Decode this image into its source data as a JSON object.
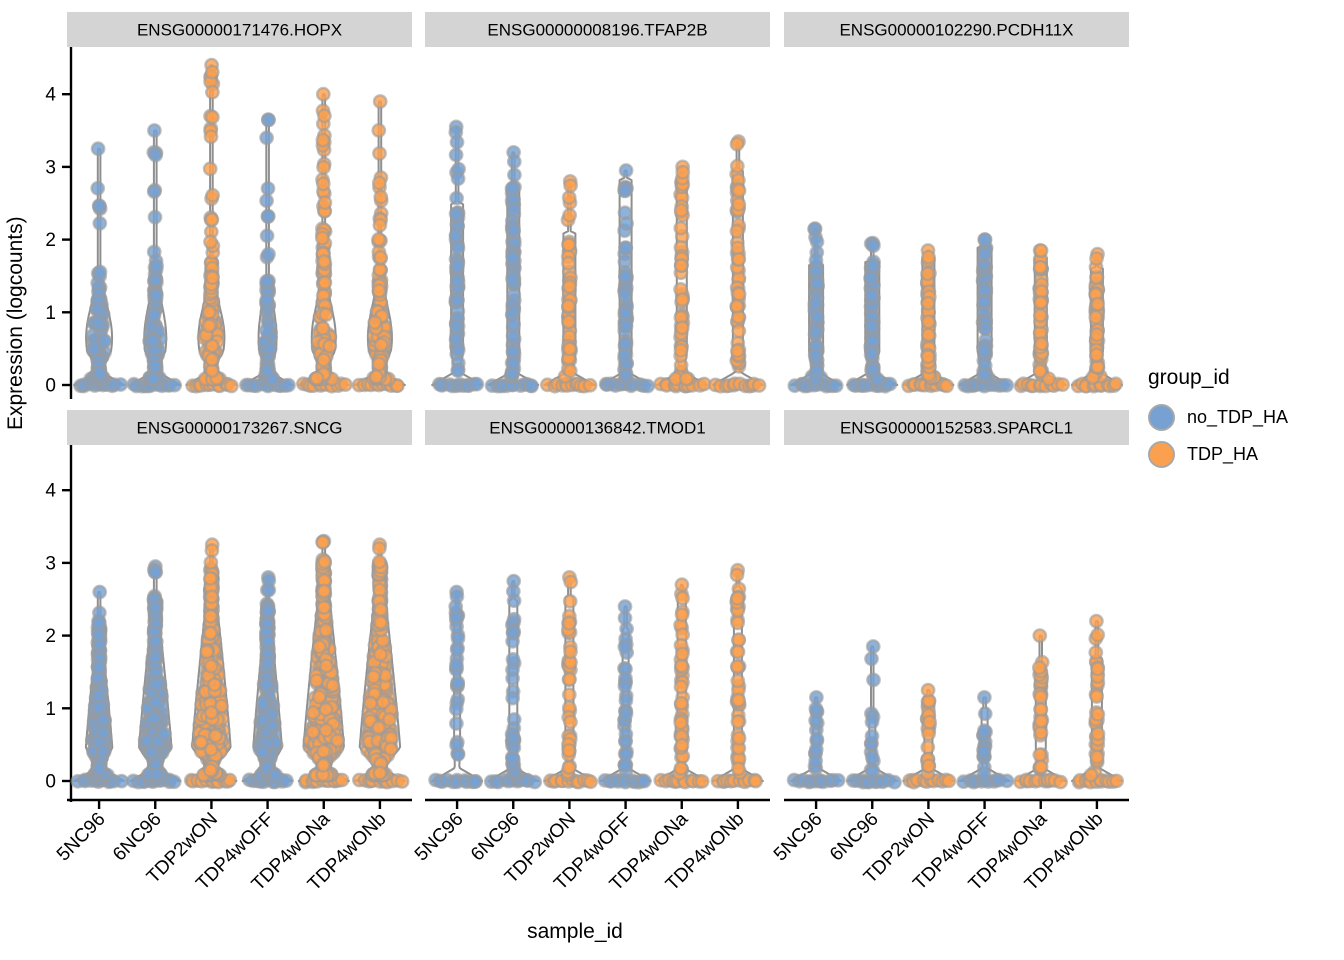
{
  "chart_data": {
    "type": "violin",
    "ylabel": "Expression (logcounts)",
    "xlabel": "sample_id",
    "y_ticks": [
      0,
      1,
      2,
      3,
      4
    ],
    "ylim": [
      0,
      4.6
    ],
    "grid": "off",
    "samples": [
      "5NC96",
      "6NC96",
      "TDP2wON",
      "TDP4wOFF",
      "TDP4wONa",
      "TDP4wONb"
    ],
    "sample_groups": [
      "no_TDP_HA",
      "no_TDP_HA",
      "TDP_HA",
      "no_TDP_HA",
      "TDP_HA",
      "TDP_HA"
    ],
    "legend": {
      "title": "group_id",
      "position": "right",
      "items": [
        {
          "label": "no_TDP_HA",
          "color": "#76A1D2"
        },
        {
          "label": "TDP_HA",
          "color": "#FBA04E"
        }
      ]
    },
    "colors": {
      "point_stroke": "#9b9b9b",
      "violin_fill": "#FBFBFB",
      "violin_stroke": "#8f8f8f",
      "strip_bg": "#D4D4D4",
      "axis": "#000000"
    },
    "facets": [
      {
        "label": "ENSG00000171476.HOPX",
        "violins": [
          {
            "sample": "5NC96",
            "group": "no_TDP_HA",
            "max": 3.25,
            "body_top": 1.35,
            "body_hw": 13,
            "shape": "bulge",
            "n_body": 95,
            "n_stem": 10
          },
          {
            "sample": "6NC96",
            "group": "no_TDP_HA",
            "max": 3.5,
            "body_top": 1.55,
            "body_hw": 11,
            "shape": "bulge",
            "n_body": 85,
            "n_stem": 12
          },
          {
            "sample": "TDP2wON",
            "group": "TDP_HA",
            "max": 4.4,
            "body_top": 1.7,
            "body_hw": 13,
            "shape": "bulge",
            "n_body": 115,
            "n_stem": 22
          },
          {
            "sample": "TDP4wOFF",
            "group": "no_TDP_HA",
            "max": 3.65,
            "body_top": 1.5,
            "body_hw": 9,
            "shape": "bulge",
            "n_body": 70,
            "n_stem": 10
          },
          {
            "sample": "TDP4wONa",
            "group": "TDP_HA",
            "max": 4.0,
            "body_top": 1.95,
            "body_hw": 12,
            "shape": "bulge",
            "n_body": 115,
            "n_stem": 24
          },
          {
            "sample": "TDP4wONb",
            "group": "TDP_HA",
            "max": 3.9,
            "body_top": 1.6,
            "body_hw": 12,
            "shape": "bulge",
            "n_body": 105,
            "n_stem": 20
          }
        ]
      },
      {
        "label": "ENSG00000008196.TFAP2B",
        "violins": [
          {
            "sample": "5NC96",
            "group": "no_TDP_HA",
            "max": 3.55,
            "body_top": 2.5,
            "body_hw": 6,
            "shape": "column",
            "n_body": 60,
            "n_stem": 8
          },
          {
            "sample": "6NC96",
            "group": "no_TDP_HA",
            "max": 3.2,
            "body_top": 2.7,
            "body_hw": 6,
            "shape": "column",
            "n_body": 62,
            "n_stem": 6
          },
          {
            "sample": "TDP2wON",
            "group": "TDP_HA",
            "max": 2.8,
            "body_top": 2.1,
            "body_hw": 6,
            "shape": "column",
            "n_body": 48,
            "n_stem": 6
          },
          {
            "sample": "TDP4wOFF",
            "group": "no_TDP_HA",
            "max": 2.95,
            "body_top": 2.85,
            "body_hw": 6,
            "shape": "column",
            "n_body": 55,
            "n_stem": 1
          },
          {
            "sample": "TDP4wONa",
            "group": "TDP_HA",
            "max": 3.0,
            "body_top": 2.85,
            "body_hw": 5,
            "shape": "column",
            "n_body": 48,
            "n_stem": 2
          },
          {
            "sample": "TDP4wONb",
            "group": "TDP_HA",
            "max": 3.35,
            "body_top": 2.95,
            "body_hw": 5,
            "shape": "column",
            "n_body": 52,
            "n_stem": 3
          }
        ]
      },
      {
        "label": "ENSG00000102290.PCDH11X",
        "violins": [
          {
            "sample": "5NC96",
            "group": "no_TDP_HA",
            "max": 2.15,
            "body_top": 1.65,
            "body_hw": 7,
            "shape": "column",
            "n_body": 62,
            "n_stem": 6
          },
          {
            "sample": "6NC96",
            "group": "no_TDP_HA",
            "max": 1.95,
            "body_top": 1.7,
            "body_hw": 7,
            "shape": "column",
            "n_body": 60,
            "n_stem": 3
          },
          {
            "sample": "TDP2wON",
            "group": "TDP_HA",
            "max": 1.85,
            "body_top": 1.75,
            "body_hw": 6,
            "shape": "column",
            "n_body": 55,
            "n_stem": 2
          },
          {
            "sample": "TDP4wOFF",
            "group": "no_TDP_HA",
            "max": 2.0,
            "body_top": 1.9,
            "body_hw": 7,
            "shape": "column",
            "n_body": 60,
            "n_stem": 2
          },
          {
            "sample": "TDP4wONa",
            "group": "TDP_HA",
            "max": 1.85,
            "body_top": 1.75,
            "body_hw": 6,
            "shape": "column",
            "n_body": 58,
            "n_stem": 2
          },
          {
            "sample": "TDP4wONb",
            "group": "TDP_HA",
            "max": 1.8,
            "body_top": 1.6,
            "body_hw": 6,
            "shape": "column",
            "n_body": 55,
            "n_stem": 3
          }
        ]
      },
      {
        "label": "ENSG00000173267.SNCG",
        "violins": [
          {
            "sample": "5NC96",
            "group": "no_TDP_HA",
            "max": 2.6,
            "body_top": 2.15,
            "body_hw": 14,
            "shape": "cone",
            "n_body": 220,
            "n_stem": 5
          },
          {
            "sample": "6NC96",
            "group": "no_TDP_HA",
            "max": 2.95,
            "body_top": 2.55,
            "body_hw": 17,
            "shape": "cone",
            "n_body": 280,
            "n_stem": 4
          },
          {
            "sample": "TDP2wON",
            "group": "TDP_HA",
            "max": 3.25,
            "body_top": 2.95,
            "body_hw": 20,
            "shape": "cone",
            "n_body": 380,
            "n_stem": 3
          },
          {
            "sample": "TDP4wOFF",
            "group": "no_TDP_HA",
            "max": 2.8,
            "body_top": 2.45,
            "body_hw": 15,
            "shape": "cone",
            "n_body": 260,
            "n_stem": 4
          },
          {
            "sample": "TDP4wONa",
            "group": "TDP_HA",
            "max": 3.3,
            "body_top": 3.05,
            "body_hw": 21,
            "shape": "cone",
            "n_body": 400,
            "n_stem": 3
          },
          {
            "sample": "TDP4wONb",
            "group": "TDP_HA",
            "max": 3.25,
            "body_top": 3.0,
            "body_hw": 21,
            "shape": "cone",
            "n_body": 380,
            "n_stem": 3
          }
        ]
      },
      {
        "label": "ENSG00000136842.TMOD1",
        "violins": [
          {
            "sample": "5NC96",
            "group": "no_TDP_HA",
            "max": 2.6,
            "body_top": 2.35,
            "body_hw": 3,
            "shape": "column",
            "n_body": 26,
            "n_stem": 3
          },
          {
            "sample": "6NC96",
            "group": "no_TDP_HA",
            "max": 2.75,
            "body_top": 2.5,
            "body_hw": 4,
            "shape": "column",
            "n_body": 34,
            "n_stem": 2
          },
          {
            "sample": "TDP2wON",
            "group": "TDP_HA",
            "max": 2.8,
            "body_top": 2.55,
            "body_hw": 4,
            "shape": "column",
            "n_body": 36,
            "n_stem": 2
          },
          {
            "sample": "TDP4wOFF",
            "group": "no_TDP_HA",
            "max": 2.4,
            "body_top": 2.1,
            "body_hw": 3,
            "shape": "column",
            "n_body": 30,
            "n_stem": 2
          },
          {
            "sample": "TDP4wONa",
            "group": "TDP_HA",
            "max": 2.7,
            "body_top": 2.6,
            "body_hw": 4,
            "shape": "column",
            "n_body": 44,
            "n_stem": 1
          },
          {
            "sample": "TDP4wONb",
            "group": "TDP_HA",
            "max": 2.9,
            "body_top": 2.65,
            "body_hw": 4,
            "shape": "column",
            "n_body": 42,
            "n_stem": 2
          }
        ]
      },
      {
        "label": "ENSG00000152583.SPARCL1",
        "violins": [
          {
            "sample": "5NC96",
            "group": "no_TDP_HA",
            "max": 1.15,
            "body_top": 1.0,
            "body_hw": 3,
            "shape": "column",
            "n_body": 14,
            "n_stem": 1
          },
          {
            "sample": "6NC96",
            "group": "no_TDP_HA",
            "max": 1.85,
            "body_top": 0.95,
            "body_hw": 3,
            "shape": "column",
            "n_body": 11,
            "n_stem": 3
          },
          {
            "sample": "TDP2wON",
            "group": "TDP_HA",
            "max": 1.25,
            "body_top": 1.15,
            "body_hw": 4,
            "shape": "column",
            "n_body": 24,
            "n_stem": 1
          },
          {
            "sample": "TDP4wOFF",
            "group": "no_TDP_HA",
            "max": 1.15,
            "body_top": 1.0,
            "body_hw": 3,
            "shape": "column",
            "n_body": 15,
            "n_stem": 1
          },
          {
            "sample": "TDP4wONa",
            "group": "TDP_HA",
            "max": 2.0,
            "body_top": 1.55,
            "body_hw": 5,
            "shape": "column",
            "n_body": 32,
            "n_stem": 3
          },
          {
            "sample": "TDP4wONb",
            "group": "TDP_HA",
            "max": 2.2,
            "body_top": 1.7,
            "body_hw": 5,
            "shape": "column",
            "n_body": 30,
            "n_stem": 4
          }
        ]
      }
    ]
  }
}
